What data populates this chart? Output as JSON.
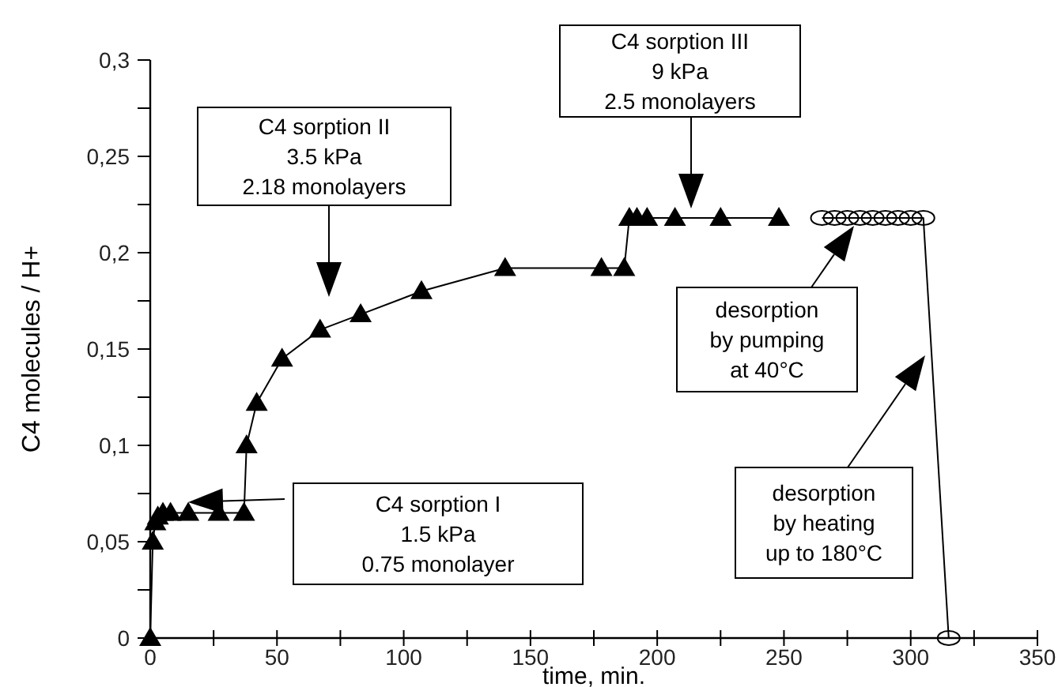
{
  "chart_data": {
    "type": "line",
    "xlabel": "time, min.",
    "ylabel": "C4 molecules / H+",
    "xlim": [
      0,
      350
    ],
    "xticks": [
      0,
      {
        "value": 25,
        "label": null
      },
      50,
      {
        "value": 75,
        "label": null
      },
      100,
      {
        "value": 125,
        "label": null
      },
      150,
      {
        "value": 175,
        "label": null
      },
      200,
      {
        "value": 225,
        "label": null
      },
      250,
      {
        "value": 275,
        "label": null
      },
      300,
      {
        "value": 325,
        "label": null
      },
      350
    ],
    "ylim": [
      0,
      0.3
    ],
    "yticks": [
      {
        "value": 0,
        "label": "0"
      },
      {
        "value": 0.025,
        "label": null
      },
      {
        "value": 0.05,
        "label": "0,05"
      },
      {
        "value": 0.075,
        "label": null
      },
      {
        "value": 0.1,
        "label": "0,1"
      },
      {
        "value": 0.125,
        "label": null
      },
      {
        "value": 0.15,
        "label": "0,15"
      },
      {
        "value": 0.175,
        "label": null
      },
      {
        "value": 0.2,
        "label": "0,2"
      },
      {
        "value": 0.225,
        "label": null
      },
      {
        "value": 0.25,
        "label": "0,25"
      },
      {
        "value": 0.275,
        "label": null
      },
      {
        "value": 0.3,
        "label": "0,3"
      }
    ],
    "grid": false,
    "line_style": "solid",
    "series": [
      {
        "color": "#000000",
        "marker": "triangle",
        "x": [
          0,
          1,
          2,
          3,
          5,
          8,
          15,
          27,
          37,
          38,
          42,
          52,
          67,
          83,
          107,
          140,
          178,
          187,
          189,
          192,
          196,
          207,
          225,
          248
        ],
        "values": [
          0,
          0.05,
          0.06,
          0.063,
          0.065,
          0.065,
          0.065,
          0.065,
          0.065,
          0.1,
          0.122,
          0.145,
          0.16,
          0.168,
          0.18,
          0.192,
          0.192,
          0.192,
          0.218,
          0.218,
          0.218,
          0.218,
          0.218,
          0.218
        ]
      },
      {
        "color": "#000000",
        "marker": "circle",
        "x": [
          265,
          270,
          275,
          280,
          285,
          290,
          295,
          300,
          305,
          315
        ],
        "values": [
          0.218,
          0.218,
          0.218,
          0.218,
          0.218,
          0.218,
          0.218,
          0.218,
          0.218,
          0
        ]
      }
    ],
    "annotations": [
      "C4 sorption I\n1.5 kPa\n0.75 monolayer",
      "C4 sorption II\n3.5 kPa\n2.18 monolayers",
      "C4 sorption III\n9 kPa\n2.5 monolayers",
      "desorption\nby pumping\nat 40°C",
      "desorption\nby heating\nup to 180°C"
    ]
  }
}
